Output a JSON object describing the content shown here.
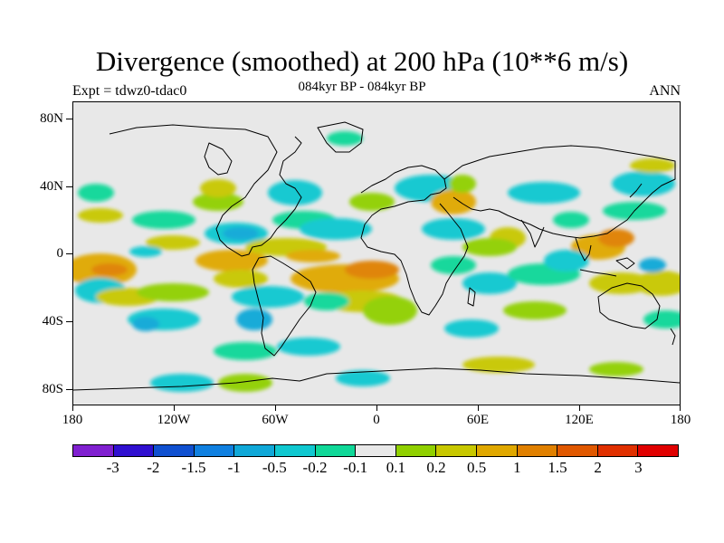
{
  "title": "Divergence (smoothed) at 200 hPa (10**6 m/s)",
  "subtitle_left": "Expt = tdwz0-tdac0",
  "subtitle_center": "084kyr BP - 084kyr BP",
  "subtitle_right": "ANN",
  "lat_labels": [
    "80N",
    "40N",
    "0",
    "40S",
    "80S"
  ],
  "lon_labels": [
    "180",
    "120W",
    "60W",
    "0",
    "60E",
    "120E",
    "180"
  ],
  "colorbar": {
    "colors": [
      "#8020d0",
      "#3010d0",
      "#1050d0",
      "#1080e0",
      "#10a8d8",
      "#10c8d0",
      "#10d898",
      "#e8e8e8",
      "#90d000",
      "#c8c800",
      "#e0a800",
      "#e08000",
      "#e05800",
      "#e03000",
      "#e00000"
    ],
    "labels": [
      "-3",
      "-2",
      "-1.5",
      "-1",
      "-0.5",
      "-0.2",
      "-0.1",
      "0.1",
      "0.2",
      "0.5",
      "1",
      "1.5",
      "2",
      "3"
    ]
  }
}
